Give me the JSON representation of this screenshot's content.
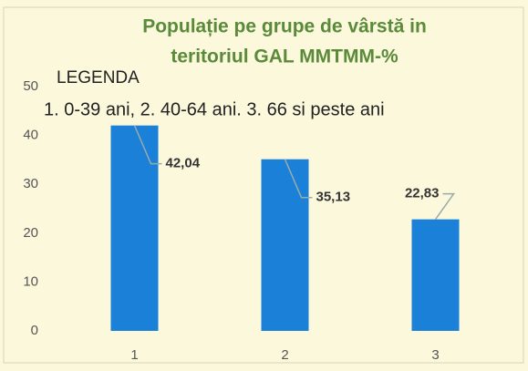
{
  "chart_data": {
    "type": "bar",
    "title": [
      "Populație pe grupe de vârstă in",
      "teritoriul GAL MMTMM-%"
    ],
    "annotations": [
      "LEGENDA",
      "1. 0-39 ani, 2. 40-64 ani. 3. 66 si peste ani"
    ],
    "categories": [
      "1",
      "2",
      "3"
    ],
    "values": [
      42.04,
      35.13,
      22.83
    ],
    "value_labels": [
      "42,04",
      "35,13",
      "22,83"
    ],
    "color": "#1a80d8",
    "ylim": [
      0,
      50
    ],
    "yticks": [
      0,
      10,
      20,
      30,
      40,
      50
    ],
    "grid": false
  }
}
